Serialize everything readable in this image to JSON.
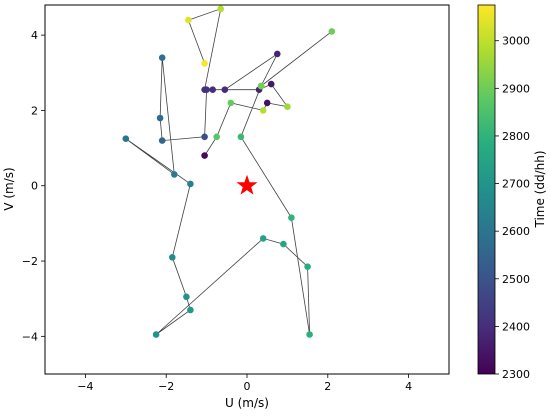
{
  "chart_data": {
    "type": "scatter",
    "title": "",
    "xlabel": "U (m/s)",
    "ylabel": "V (m/s)",
    "xlim": [
      -5,
      5
    ],
    "ylim": [
      -5,
      4.8
    ],
    "x_ticks": [
      -4,
      -2,
      0,
      2,
      4
    ],
    "y_ticks": [
      -4,
      -2,
      0,
      2,
      4
    ],
    "grid": false,
    "connected": true,
    "line_color": "#404040",
    "colormap": "viridis",
    "colorbar": {
      "label": "Time (dd/hh)",
      "range": [
        2300,
        3075
      ],
      "ticks": [
        2300,
        2400,
        2500,
        2600,
        2700,
        2800,
        2900,
        3000
      ]
    },
    "marker": {
      "symbol": "star",
      "x": 0,
      "y": 0,
      "color": "#ff0000"
    },
    "points": [
      {
        "u": -1.05,
        "v": 0.8,
        "t": 2320
      },
      {
        "u": -0.75,
        "v": 1.3,
        "t": 2870
      },
      {
        "u": -0.4,
        "v": 2.2,
        "t": 2890
      },
      {
        "u": 0.4,
        "v": 2.0,
        "t": 2990
      },
      {
        "u": 0.5,
        "v": 2.2,
        "t": 2330
      },
      {
        "u": 1.0,
        "v": 2.1,
        "t": 2960
      },
      {
        "u": 0.6,
        "v": 2.7,
        "t": 2350
      },
      {
        "u": 0.3,
        "v": 2.55,
        "t": 2380
      },
      {
        "u": -0.85,
        "v": 2.55,
        "t": 2400
      },
      {
        "u": -1.0,
        "v": 2.55,
        "t": 2420
      },
      {
        "u": -1.05,
        "v": 1.3,
        "t": 2480
      },
      {
        "u": -2.1,
        "v": 1.2,
        "t": 2550
      },
      {
        "u": -2.15,
        "v": 1.8,
        "t": 2570
      },
      {
        "u": -2.1,
        "v": 3.4,
        "t": 2590
      },
      {
        "u": -1.8,
        "v": 0.3,
        "t": 2620
      },
      {
        "u": -3.0,
        "v": 1.25,
        "t": 2600
      },
      {
        "u": -1.4,
        "v": 0.05,
        "t": 2640
      },
      {
        "u": -1.85,
        "v": -1.9,
        "t": 2670
      },
      {
        "u": -1.5,
        "v": -2.95,
        "t": 2700
      },
      {
        "u": -1.4,
        "v": -3.3,
        "t": 2710
      },
      {
        "u": -2.25,
        "v": -3.95,
        "t": 2690
      },
      {
        "u": 0.4,
        "v": -1.4,
        "t": 2740
      },
      {
        "u": 0.9,
        "v": -1.55,
        "t": 2760
      },
      {
        "u": 1.5,
        "v": -2.15,
        "t": 2780
      },
      {
        "u": 1.55,
        "v": -3.95,
        "t": 2790
      },
      {
        "u": 1.1,
        "v": -0.85,
        "t": 2800
      },
      {
        "u": -0.15,
        "v": 1.3,
        "t": 2820
      },
      {
        "u": 0.35,
        "v": 2.65,
        "t": 2930
      },
      {
        "u": 2.1,
        "v": 4.1,
        "t": 2900
      },
      {
        "u": 0.35,
        "v": 2.65,
        "t": 2910
      },
      {
        "u": 0.75,
        "v": 3.5,
        "t": 2380
      },
      {
        "u": -0.55,
        "v": 2.55,
        "t": 2390
      },
      {
        "u": -1.05,
        "v": 2.55,
        "t": 2410
      },
      {
        "u": -0.65,
        "v": 4.7,
        "t": 2990
      },
      {
        "u": -1.45,
        "v": 4.4,
        "t": 3040
      },
      {
        "u": -1.05,
        "v": 3.25,
        "t": 3070
      }
    ]
  }
}
